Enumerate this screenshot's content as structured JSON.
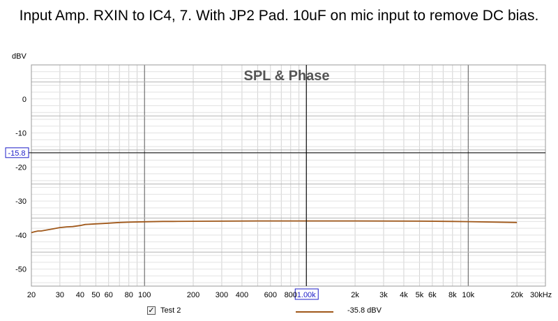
{
  "title": "Input Amp. RXIN to IC4, 7. With JP2 Pad. 10uF on mic input to remove DC bias.",
  "chart_data": {
    "type": "line",
    "title": "SPL & Phase",
    "ylabel": "dBV",
    "xlabel": "",
    "x_unit": "Hz",
    "x_scale": "log",
    "xlim": [
      20,
      30000
    ],
    "ylim": [
      -55,
      10
    ],
    "grid": true,
    "x_ticks": [
      {
        "v": 20,
        "label": "20"
      },
      {
        "v": 30,
        "label": "30"
      },
      {
        "v": 40,
        "label": "40"
      },
      {
        "v": 50,
        "label": "50"
      },
      {
        "v": 60,
        "label": "60"
      },
      {
        "v": 80,
        "label": "80"
      },
      {
        "v": 100,
        "label": "100"
      },
      {
        "v": 200,
        "label": "200"
      },
      {
        "v": 300,
        "label": "300"
      },
      {
        "v": 400,
        "label": "400"
      },
      {
        "v": 600,
        "label": "600"
      },
      {
        "v": 800,
        "label": "800"
      },
      {
        "v": 2000,
        "label": "2k"
      },
      {
        "v": 3000,
        "label": "3k"
      },
      {
        "v": 4000,
        "label": "4k"
      },
      {
        "v": 5000,
        "label": "5k"
      },
      {
        "v": 6000,
        "label": "6k"
      },
      {
        "v": 8000,
        "label": "8k"
      },
      {
        "v": 10000,
        "label": "10k"
      },
      {
        "v": 20000,
        "label": "20k"
      },
      {
        "v": 30000,
        "label": "30kHz"
      }
    ],
    "y_ticks": [
      {
        "v": 0,
        "label": "0"
      },
      {
        "v": -10,
        "label": "-10"
      },
      {
        "v": -20,
        "label": "-20"
      },
      {
        "v": -30,
        "label": "-30"
      },
      {
        "v": -40,
        "label": "-40"
      },
      {
        "v": -50,
        "label": "-50"
      }
    ],
    "cursor": {
      "x": 1000,
      "y": -15.8,
      "x_label": "1.00k",
      "y_label": "-15.8"
    },
    "series": [
      {
        "name": "Test 2",
        "color": "#a0581a",
        "legend_value": "-35.8 dBV",
        "points": [
          [
            20,
            -39.3
          ],
          [
            21,
            -39.0
          ],
          [
            22,
            -38.8
          ],
          [
            23,
            -38.8
          ],
          [
            25,
            -38.5
          ],
          [
            27,
            -38.2
          ],
          [
            30,
            -37.8
          ],
          [
            33,
            -37.6
          ],
          [
            36,
            -37.5
          ],
          [
            40,
            -37.2
          ],
          [
            43,
            -36.9
          ],
          [
            47,
            -36.8
          ],
          [
            50,
            -36.7
          ],
          [
            55,
            -36.6
          ],
          [
            60,
            -36.5
          ],
          [
            70,
            -36.3
          ],
          [
            80,
            -36.2
          ],
          [
            100,
            -36.1
          ],
          [
            130,
            -36.0
          ],
          [
            150,
            -36.0
          ],
          [
            200,
            -35.95
          ],
          [
            300,
            -35.9
          ],
          [
            500,
            -35.85
          ],
          [
            1000,
            -35.85
          ],
          [
            2000,
            -35.85
          ],
          [
            5000,
            -35.9
          ],
          [
            8000,
            -36.0
          ],
          [
            10000,
            -36.05
          ],
          [
            15000,
            -36.2
          ],
          [
            20000,
            -36.3
          ]
        ]
      }
    ]
  }
}
